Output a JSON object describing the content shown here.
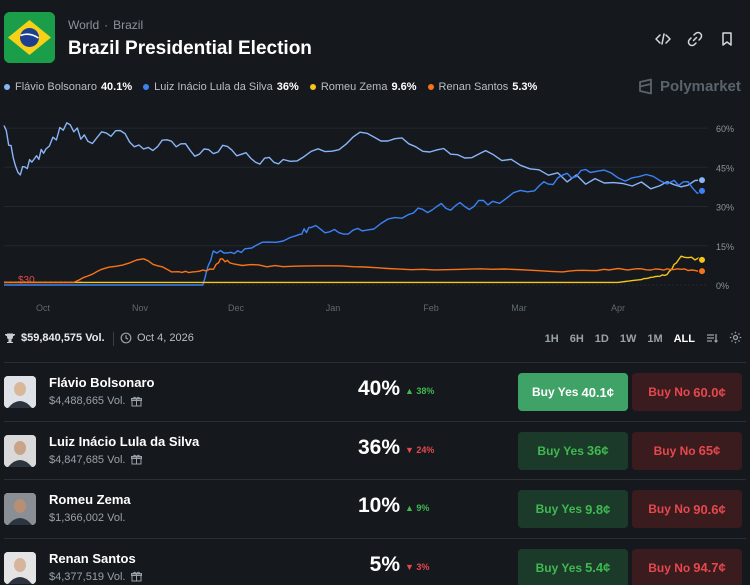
{
  "header": {
    "breadcrumb": [
      "World",
      "Brazil"
    ],
    "title": "Brazil Presidential Election",
    "icons": [
      "embed-icon",
      "link-icon",
      "bookmark-icon"
    ]
  },
  "brand": "Polymarket",
  "legend": [
    {
      "name": "Flávio Bolsonaro",
      "value": "40.1%",
      "color": "#8ab4f8"
    },
    {
      "name": "Luiz Inácio Lula da Silva",
      "value": "36%",
      "color": "#3b82f6"
    },
    {
      "name": "Romeu Zema",
      "value": "9.6%",
      "color": "#f5c518"
    },
    {
      "name": "Renan Santos",
      "value": "5.3%",
      "color": "#f97316"
    }
  ],
  "chart_data": {
    "type": "line",
    "x_ticks": [
      "Oct",
      "Nov",
      "Dec",
      "Jan",
      "Feb",
      "Mar",
      "Apr"
    ],
    "y_ticks": [
      "60%",
      "45%",
      "30%",
      "15%",
      "0%"
    ],
    "ylim": [
      0,
      65
    ],
    "price_marker": "$30",
    "series": [
      {
        "name": "Flávio Bolsonaro",
        "color": "#8ab4f8",
        "t": [
          0,
          2,
          4,
          6,
          9,
          12,
          16,
          20,
          24,
          28,
          32,
          36,
          40,
          46,
          52,
          58,
          64,
          70,
          78,
          86,
          94,
          100
        ],
        "values": [
          61,
          43,
          47,
          52,
          62,
          55,
          59,
          52,
          55,
          50,
          53,
          47,
          48,
          51,
          58,
          54,
          50,
          50,
          42,
          39,
          38,
          40.1
        ]
      },
      {
        "name": "Luiz Inácio Lula da Silva",
        "color": "#3b82f6",
        "t": [
          0,
          10,
          20,
          28.5,
          29,
          30,
          33,
          36,
          42,
          44,
          48,
          52,
          58,
          62,
          66,
          70,
          76,
          80,
          84,
          90,
          96,
          100
        ],
        "values": [
          0,
          0,
          0,
          0,
          5,
          13,
          12,
          15,
          19,
          22,
          20,
          21,
          27,
          30,
          30,
          32,
          36,
          42,
          43,
          41,
          40,
          36
        ]
      },
      {
        "name": "Romeu Zema",
        "color": "#f5c518",
        "t": [
          0,
          30,
          60,
          84,
          88,
          91,
          93,
          95,
          97,
          100
        ],
        "values": [
          1,
          1,
          1,
          1,
          1,
          2,
          3,
          4,
          11,
          9.6
        ]
      },
      {
        "name": "Renan Santos",
        "color": "#f97316",
        "t": [
          0,
          10,
          14,
          20,
          24,
          27,
          30,
          31,
          33,
          40,
          50,
          60,
          70,
          80,
          86,
          90,
          94,
          97,
          100
        ],
        "values": [
          1,
          1,
          6,
          10,
          5,
          5,
          6,
          10,
          8,
          7,
          7,
          6,
          6,
          5,
          6,
          6,
          6,
          6,
          5.3
        ]
      }
    ]
  },
  "stats": {
    "volume": "$59,840,575 Vol.",
    "date": "Oct 4, 2026",
    "ranges": [
      "1H",
      "6H",
      "1D",
      "1W",
      "1M",
      "ALL"
    ],
    "active_range": "ALL"
  },
  "candidates": [
    {
      "name": "Flávio Bolsonaro",
      "volume": "$4,488,665 Vol.",
      "has_gift": true,
      "percent": "40%",
      "change": "38%",
      "direction": "up",
      "yes_label": "Buy Yes",
      "yes_price": "40.1¢",
      "no_label": "Buy No",
      "no_price": "60.0¢",
      "primary": true
    },
    {
      "name": "Luiz Inácio Lula da Silva",
      "volume": "$4,847,685 Vol.",
      "has_gift": true,
      "percent": "36%",
      "change": "24%",
      "direction": "down",
      "yes_label": "Buy Yes",
      "yes_price": "36¢",
      "no_label": "Buy No",
      "no_price": "65¢",
      "primary": false
    },
    {
      "name": "Romeu Zema",
      "volume": "$1,366,002 Vol.",
      "has_gift": false,
      "percent": "10%",
      "change": "9%",
      "direction": "up",
      "yes_label": "Buy Yes",
      "yes_price": "9.8¢",
      "no_label": "Buy No",
      "no_price": "90.6¢",
      "primary": false
    },
    {
      "name": "Renan Santos",
      "volume": "$4,377,519 Vol.",
      "has_gift": true,
      "percent": "5%",
      "change": "3%",
      "direction": "down",
      "yes_label": "Buy Yes",
      "yes_price": "5.4¢",
      "no_label": "Buy No",
      "no_price": "94.7¢",
      "primary": false
    }
  ]
}
